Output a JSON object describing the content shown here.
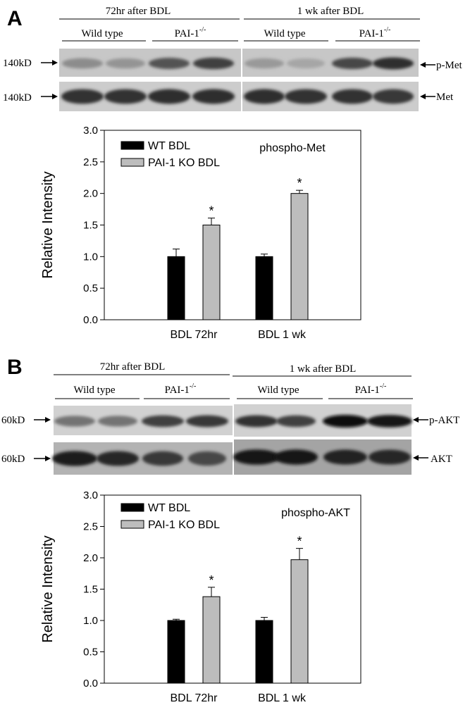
{
  "panels": [
    {
      "letter": "A",
      "groups": [
        {
          "title": "72hr after BDL",
          "subs": [
            "Wild type",
            "PAI-1"
          ]
        },
        {
          "title": "1 wk after BDL",
          "subs": [
            "Wild type",
            "PAI-1"
          ]
        }
      ],
      "sup": "-/-",
      "blot_rows": [
        {
          "left": "140kD",
          "right": "p-Met"
        },
        {
          "left": "140kD",
          "right": "Met"
        }
      ],
      "bands": [
        [
          {
            "w": 58,
            "d": 0.45
          },
          {
            "w": 56,
            "d": 0.42
          },
          {
            "w": 58,
            "d": 0.68
          },
          {
            "w": 58,
            "d": 0.75
          },
          {
            "w": 56,
            "d": 0.4
          },
          {
            "w": 54,
            "d": 0.35
          },
          {
            "w": 58,
            "d": 0.72
          },
          {
            "w": 58,
            "d": 0.82
          }
        ],
        [
          {
            "w": 60,
            "d": 0.8
          },
          {
            "w": 60,
            "d": 0.8
          },
          {
            "w": 60,
            "d": 0.82
          },
          {
            "w": 60,
            "d": 0.82
          },
          {
            "w": 58,
            "d": 0.82
          },
          {
            "w": 60,
            "d": 0.8
          },
          {
            "w": 58,
            "d": 0.8
          },
          {
            "w": 58,
            "d": 0.78
          }
        ]
      ],
      "bg": [
        0.78,
        0.8
      ],
      "chart_data": {
        "type": "bar",
        "categories": [
          "BDL 72hr",
          "BDL 1 wk"
        ],
        "series": [
          {
            "name": "WT BDL",
            "color": "#000000",
            "values": [
              1.0,
              1.0
            ],
            "errors": [
              0.12,
              0.04
            ]
          },
          {
            "name": "PAI-1 KO BDL",
            "color": "#bdbdbd",
            "values": [
              1.5,
              2.0
            ],
            "errors": [
              0.11,
              0.05
            ]
          }
        ],
        "significance": [
          "*",
          "*"
        ],
        "annotation": "phospho-Met",
        "ylabel": "Relative Intensity",
        "ylim": [
          0,
          3.0
        ],
        "yticks": [
          "0.0",
          "0.5",
          "1.0",
          "1.5",
          "2.0",
          "2.5",
          "3.0"
        ],
        "legend": "top-left",
        "grid": false
      }
    },
    {
      "letter": "B",
      "groups": [
        {
          "title": "72hr after BDL",
          "subs": [
            "Wild type",
            "PAI-1"
          ]
        },
        {
          "title": "1 wk after BDL",
          "subs": [
            "Wild type",
            "PAI-1"
          ]
        }
      ],
      "sup": "-/-",
      "blot_rows": [
        {
          "left": "60kD",
          "right": "p-AKT"
        },
        {
          "left": "60kD",
          "right": "AKT"
        }
      ],
      "bands": [
        [
          {
            "w": 58,
            "d": 0.55
          },
          {
            "w": 56,
            "d": 0.55
          },
          {
            "w": 60,
            "d": 0.75
          },
          {
            "w": 60,
            "d": 0.78
          },
          {
            "w": 60,
            "d": 0.8
          },
          {
            "w": 56,
            "d": 0.75
          },
          {
            "w": 64,
            "d": 0.97
          },
          {
            "w": 64,
            "d": 0.92
          }
        ],
        [
          {
            "w": 64,
            "d": 0.88
          },
          {
            "w": 60,
            "d": 0.85
          },
          {
            "w": 58,
            "d": 0.78
          },
          {
            "w": 54,
            "d": 0.72
          },
          {
            "w": 66,
            "d": 0.92
          },
          {
            "w": 62,
            "d": 0.9
          },
          {
            "w": 62,
            "d": 0.86
          },
          {
            "w": 60,
            "d": 0.85
          }
        ]
      ],
      "bg": [
        0.82,
        0.7
      ],
      "chart_data": {
        "type": "bar",
        "categories": [
          "BDL 72hr",
          "BDL 1 wk"
        ],
        "series": [
          {
            "name": "WT BDL",
            "color": "#000000",
            "values": [
              1.0,
              1.0
            ],
            "errors": [
              0.02,
              0.05
            ]
          },
          {
            "name": "PAI-1 KO BDL",
            "color": "#bdbdbd",
            "values": [
              1.38,
              1.97
            ],
            "errors": [
              0.15,
              0.18
            ]
          }
        ],
        "significance": [
          "*",
          "*"
        ],
        "annotation": "phospho-AKT",
        "ylabel": "Relative Intensity",
        "ylim": [
          0,
          3.0
        ],
        "yticks": [
          "0.0",
          "0.5",
          "1.0",
          "1.5",
          "2.0",
          "2.5",
          "3.0"
        ],
        "legend": "top-left",
        "grid": false
      }
    }
  ]
}
